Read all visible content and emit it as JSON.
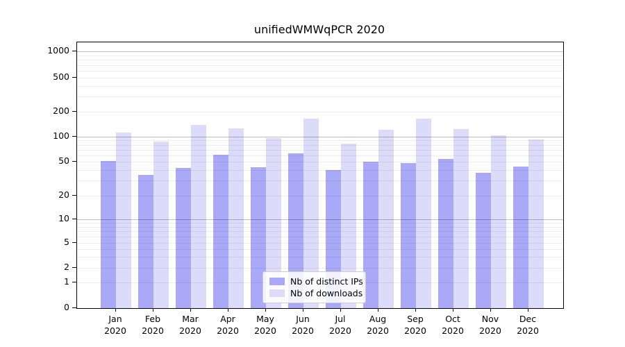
{
  "title": "unifiedWMWqPCR 2020",
  "chart_data": {
    "type": "bar",
    "title": "unifiedWMWqPCR 2020",
    "categories": [
      "Jan",
      "Feb",
      "Mar",
      "Apr",
      "May",
      "Jun",
      "Jul",
      "Aug",
      "Sep",
      "Oct",
      "Nov",
      "Dec"
    ],
    "category_year": "2020",
    "series": [
      {
        "name": "Nb of distinct IPs",
        "color": "#a9a9f7",
        "values": [
          51,
          35,
          42,
          61,
          43,
          63,
          40,
          50,
          48,
          54,
          37,
          44
        ]
      },
      {
        "name": "Nb of downloads",
        "color": "#dcdcfa",
        "values": [
          112,
          88,
          140,
          126,
          96,
          166,
          83,
          121,
          164,
          123,
          104,
          92
        ]
      }
    ],
    "xlabel": "",
    "ylabel": "",
    "yscale": "symlog",
    "yticks": [
      0,
      1,
      2,
      5,
      10,
      20,
      50,
      100,
      200,
      500,
      1000
    ],
    "ylim": [
      0,
      1300
    ],
    "grid": "horizontal",
    "legend_position": "lower-center"
  },
  "legend": {
    "items": [
      {
        "label": "Nb of distinct IPs",
        "color": "#a9a9f7"
      },
      {
        "label": "Nb of downloads",
        "color": "#dcdcfa"
      }
    ]
  }
}
